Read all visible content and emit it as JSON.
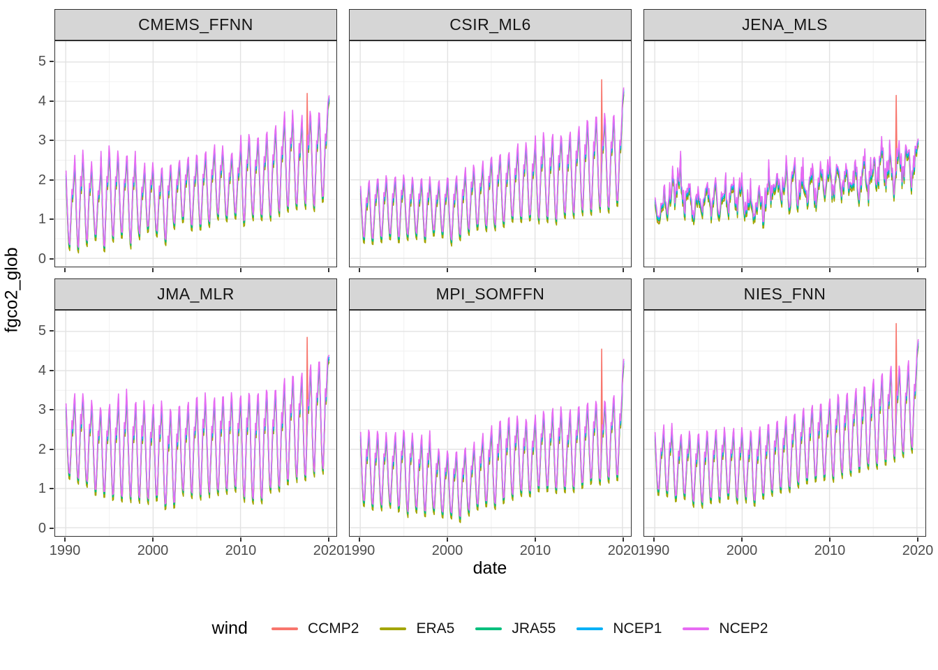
{
  "chart_data": {
    "type": "line",
    "title": "",
    "xlabel": "date",
    "ylabel": "fgco2_glob",
    "x_ticks": [
      1990,
      2000,
      2010,
      2020
    ],
    "x_minor_ticks": [
      1995,
      2005,
      2015
    ],
    "y_ticks": [
      0,
      1,
      2,
      3,
      4,
      5
    ],
    "y_minor_ticks": [
      0.5,
      1.5,
      2.5,
      3.5,
      4.5,
      5.5
    ],
    "x_domain": [
      1988.8,
      2021.3
    ],
    "y_domain": [
      -0.21,
      5.53
    ],
    "grid": "major+minor",
    "legend_position": "bottom",
    "legend_title": "wind",
    "start_year": 1990,
    "end_year": 2020,
    "sampling": "monthly",
    "seasonal_shape": [
      0.95,
      0.4,
      -0.15,
      -0.65,
      -0.95,
      -1.0,
      -0.55,
      -0.05,
      0.45,
      0.3,
      0.65,
      1.0
    ],
    "ccmp2_spike_time": 2017.6,
    "series": [
      {
        "name": "CCMP2",
        "color": "#F8766D",
        "amp_scale": 1.0,
        "offset": -0.04
      },
      {
        "name": "ERA5",
        "color": "#A3A500",
        "amp_scale": 1.03,
        "offset": -0.08
      },
      {
        "name": "JRA55",
        "color": "#00BF7D",
        "amp_scale": 1.02,
        "offset": 0.0
      },
      {
        "name": "NCEP1",
        "color": "#00B0F6",
        "amp_scale": 1.01,
        "offset": 0.05
      },
      {
        "name": "NCEP2",
        "color": "#E76BF3",
        "amp_scale": 1.06,
        "offset": 0.1
      }
    ],
    "facets": [
      {
        "name": "CMEMS_FFNN",
        "seasonality": 1.0,
        "noise": 0.1,
        "spike_value": 4.2,
        "end_value": 4.15,
        "annual_min": [
          0.3,
          0.3,
          0.45,
          0.55,
          0.3,
          0.5,
          0.6,
          0.4,
          0.6,
          0.75,
          0.65,
          0.45,
          0.85,
          1.0,
          0.8,
          0.8,
          0.9,
          1.05,
          1.0,
          1.1,
          0.9,
          1.1,
          1.05,
          1.1,
          1.2,
          1.3,
          1.3,
          1.4,
          1.35,
          1.5
        ],
        "annual_max": [
          2.1,
          2.55,
          2.35,
          2.0,
          2.65,
          2.55,
          2.4,
          2.55,
          2.1,
          2.3,
          2.1,
          2.2,
          2.3,
          2.4,
          2.45,
          2.5,
          2.6,
          2.75,
          2.5,
          2.6,
          3.0,
          2.9,
          2.95,
          3.1,
          3.3,
          3.6,
          3.3,
          3.55,
          3.5,
          3.6
        ]
      },
      {
        "name": "CSIR_ML6",
        "seasonality": 1.0,
        "noise": 0.1,
        "spike_value": 4.55,
        "end_value": 4.35,
        "annual_min": [
          0.5,
          0.45,
          0.5,
          0.55,
          0.5,
          0.55,
          0.6,
          0.5,
          0.65,
          0.6,
          0.45,
          0.55,
          0.7,
          0.8,
          0.75,
          0.8,
          0.9,
          1.0,
          1.0,
          1.05,
          1.0,
          1.05,
          1.0,
          1.1,
          1.15,
          1.2,
          1.25,
          1.3,
          1.3,
          1.4
        ],
        "annual_max": [
          1.75,
          1.9,
          1.95,
          1.9,
          2.0,
          1.9,
          1.85,
          1.95,
          1.8,
          1.9,
          1.9,
          2.0,
          2.2,
          2.2,
          2.4,
          2.5,
          2.5,
          2.6,
          2.8,
          2.7,
          3.0,
          2.9,
          3.0,
          3.0,
          3.1,
          3.3,
          3.4,
          3.5,
          3.4,
          3.5
        ]
      },
      {
        "name": "JENA_MLS",
        "seasonality": 0.5,
        "noise": 0.85,
        "spike_value": 4.15,
        "end_value": 3.05,
        "annual_min": [
          0.85,
          1.0,
          1.1,
          1.0,
          0.9,
          0.95,
          0.9,
          0.85,
          1.0,
          0.95,
          0.85,
          0.55,
          0.65,
          1.1,
          1.15,
          1.1,
          1.1,
          1.05,
          1.1,
          1.2,
          1.3,
          1.25,
          1.3,
          1.3,
          1.35,
          1.4,
          1.5,
          1.45,
          1.5,
          1.5
        ],
        "annual_max": [
          1.5,
          2.0,
          2.75,
          2.2,
          1.85,
          1.9,
          2.1,
          2.0,
          2.35,
          2.3,
          2.0,
          1.9,
          2.2,
          2.55,
          2.5,
          2.65,
          2.55,
          2.4,
          2.55,
          2.8,
          2.6,
          2.55,
          2.6,
          2.75,
          2.8,
          3.05,
          3.1,
          3.05,
          3.2,
          3.1
        ]
      },
      {
        "name": "JMA_MLR",
        "seasonality": 1.0,
        "noise": 0.1,
        "spike_value": 4.85,
        "end_value": 4.4,
        "annual_min": [
          1.3,
          1.2,
          1.1,
          0.9,
          0.85,
          0.8,
          0.75,
          0.8,
          0.75,
          0.7,
          0.75,
          0.55,
          0.6,
          0.9,
          0.85,
          0.85,
          0.9,
          0.9,
          0.95,
          1.0,
          0.75,
          0.75,
          0.75,
          1.0,
          1.05,
          1.2,
          1.3,
          1.3,
          1.45,
          1.5
        ],
        "annual_max": [
          3.05,
          3.3,
          3.1,
          2.9,
          2.9,
          3.0,
          3.3,
          3.0,
          3.05,
          2.9,
          3.05,
          2.85,
          2.9,
          2.95,
          3.1,
          3.25,
          3.05,
          3.15,
          3.25,
          3.1,
          3.3,
          3.2,
          3.3,
          3.3,
          3.4,
          3.7,
          3.7,
          3.85,
          4.05,
          4.1
        ]
      },
      {
        "name": "MPI_SOMFFN",
        "seasonality": 1.0,
        "noise": 0.1,
        "spike_value": 4.55,
        "end_value": 4.3,
        "annual_min": [
          0.6,
          0.55,
          0.55,
          0.6,
          0.5,
          0.4,
          0.45,
          0.35,
          0.45,
          0.35,
          0.3,
          0.25,
          0.4,
          0.55,
          0.6,
          0.6,
          0.7,
          0.8,
          0.9,
          0.9,
          1.0,
          1.0,
          0.95,
          1.0,
          1.0,
          1.1,
          1.2,
          1.2,
          1.25,
          1.3
        ],
        "annual_max": [
          2.3,
          2.3,
          2.25,
          2.15,
          2.35,
          2.3,
          2.1,
          2.3,
          1.9,
          1.8,
          1.75,
          1.8,
          1.9,
          2.1,
          2.3,
          2.5,
          2.65,
          2.7,
          2.6,
          2.55,
          2.8,
          2.75,
          2.9,
          2.75,
          2.9,
          3.0,
          3.1,
          3.05,
          3.1,
          3.3
        ]
      },
      {
        "name": "NIES_FNN",
        "seasonality": 1.0,
        "noise": 0.1,
        "spike_value": 5.2,
        "end_value": 4.8,
        "annual_min": [
          0.9,
          0.85,
          0.75,
          0.8,
          0.65,
          0.6,
          0.7,
          0.75,
          0.8,
          0.7,
          0.75,
          0.65,
          0.8,
          0.9,
          1.0,
          1.0,
          1.1,
          1.2,
          1.25,
          1.3,
          1.3,
          1.4,
          1.45,
          1.5,
          1.55,
          1.6,
          1.7,
          1.8,
          1.9,
          2.0
        ],
        "annual_max": [
          2.3,
          2.5,
          2.2,
          2.3,
          2.2,
          2.3,
          2.3,
          2.4,
          2.3,
          2.4,
          2.3,
          2.3,
          2.45,
          2.5,
          2.6,
          2.7,
          2.8,
          2.9,
          3.0,
          3.0,
          3.2,
          3.2,
          3.3,
          3.4,
          3.5,
          3.7,
          3.8,
          4.0,
          3.9,
          4.1
        ]
      }
    ]
  },
  "legend": {
    "title": "wind",
    "entries": [
      {
        "label": "CCMP2",
        "color": "#F8766D"
      },
      {
        "label": "ERA5",
        "color": "#A3A500"
      },
      {
        "label": "JRA55",
        "color": "#00BF7D"
      },
      {
        "label": "NCEP1",
        "color": "#00B0F6"
      },
      {
        "label": "NCEP2",
        "color": "#E76BF3"
      }
    ]
  },
  "style": {
    "strip_bg": "#d6d6d6",
    "panel_border": "#2e2e2e",
    "grid_major": "#e2e2e2",
    "grid_minor": "#f1f1f1",
    "tick_label_color": "#4d4d4d"
  }
}
